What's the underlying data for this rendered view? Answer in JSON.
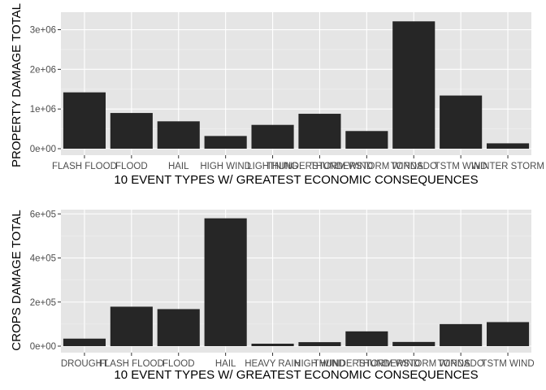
{
  "chart_data": [
    {
      "type": "bar",
      "xlabel": "10 EVENT TYPES W/ GREATEST ECONOMIC CONSEQUENCES",
      "ylabel": "PROPERTY DAMAGE TOTAL",
      "categories": [
        "FLASH FLOOD",
        "FLOOD",
        "HAIL",
        "HIGH WIND",
        "LIGHTNING",
        "THUNDERSTORM WIND",
        "THUNDERSTORM WINDS",
        "TORNADO",
        "TSTM WIND",
        "WINTER STORM"
      ],
      "values": [
        1420000,
        900000,
        690000,
        320000,
        600000,
        880000,
        445000,
        3210000,
        1340000,
        135000
      ],
      "ylim": [
        0,
        3400000
      ],
      "yticks": [
        0,
        1000000,
        2000000,
        3000000
      ],
      "yticklabels": [
        "0e+00",
        "1e+06",
        "2e+06",
        "3e+06"
      ],
      "grid": true,
      "colors": {
        "bar": "#262626",
        "panel": "#e5e5e5",
        "grid_major": "#ffffff",
        "grid_minor": "#f2f2f2"
      }
    },
    {
      "type": "bar",
      "xlabel": "10 EVENT TYPES W/ GREATEST ECONOMIC CONSEQUENCES",
      "ylabel": "CROPS DAMAGE TOTAL",
      "categories": [
        "DROUGHT",
        "FLASH FLOOD",
        "FLOOD",
        "HAIL",
        "HEAVY RAIN",
        "HIGH WIND",
        "THUNDERSTORM WIND",
        "THUNDERSTORM WINDS",
        "TORNADO",
        "TSTM WIND"
      ],
      "values": [
        34000,
        179000,
        168000,
        580000,
        11000,
        18000,
        67000,
        19000,
        100000,
        109000
      ],
      "ylim": [
        0,
        612000
      ],
      "yticks": [
        0,
        200000,
        400000,
        600000
      ],
      "yticklabels": [
        "0e+00",
        "2e+05",
        "4e+05",
        "6e+05"
      ],
      "grid": true,
      "colors": {
        "bar": "#262626",
        "panel": "#e5e5e5",
        "grid_major": "#ffffff",
        "grid_minor": "#f2f2f2"
      }
    }
  ]
}
